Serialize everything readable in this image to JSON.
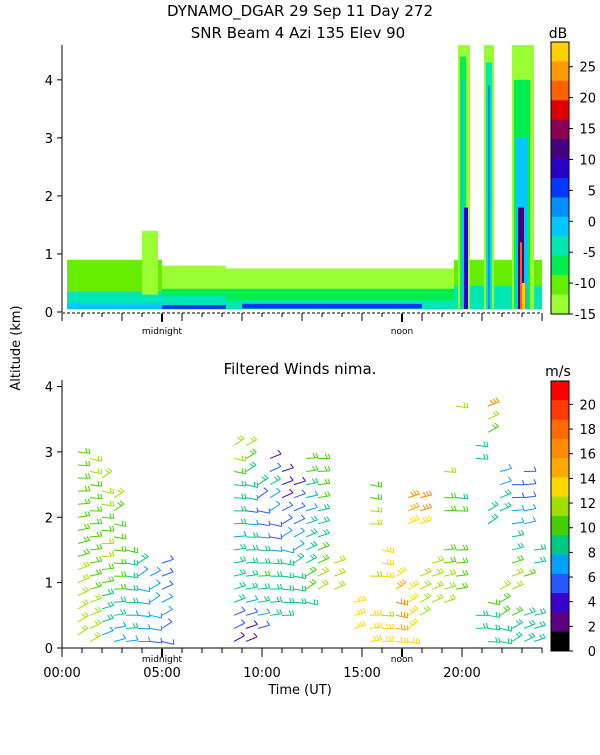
{
  "chart_data": [
    {
      "type": "heatmap",
      "title": "DYNAMO_DGAR  29 Sep 11 Day 272",
      "subtitle": "SNR Beam 4 Azi 135 Elev 90",
      "shared_ylabel": "Altitude (km)",
      "ylim": [
        0,
        4.6
      ],
      "yticks": [
        0,
        1,
        2,
        3,
        4
      ],
      "xlim_hours": [
        0,
        24
      ],
      "x_annotations": [
        {
          "label": "midnight",
          "hour": 5
        },
        {
          "label": "noon",
          "hour": 17
        }
      ],
      "colorbar": {
        "unit": "dB",
        "ticks": [
          "25",
          "20",
          "15",
          "10",
          "5",
          "0",
          "-5",
          "-10",
          "-15"
        ],
        "colors": [
          "#ffd000",
          "#ff9900",
          "#ff6200",
          "#e00000",
          "#8a0050",
          "#460080",
          "#2a00c8",
          "#0038ff",
          "#0090ff",
          "#00c8ff",
          "#00e6b4",
          "#00ee50",
          "#66ee00",
          "#99ff33"
        ],
        "range": [
          -15,
          29
        ]
      },
      "regions": [
        {
          "x0": 0.25,
          "x1": 5.0,
          "y0": 0.05,
          "y1": 0.9,
          "level": 1
        },
        {
          "x0": 0.25,
          "x1": 5.0,
          "y0": 0.05,
          "y1": 0.35,
          "level": 3
        },
        {
          "x0": 0.25,
          "x1": 5.0,
          "y0": 0.05,
          "y1": 0.15,
          "level": 4
        },
        {
          "x0": 4.0,
          "x1": 4.8,
          "y0": 0.3,
          "y1": 1.4,
          "level": 0
        },
        {
          "x0": 5.0,
          "x1": 8.2,
          "y0": 0.05,
          "y1": 0.8,
          "level": 0
        },
        {
          "x0": 5.0,
          "x1": 8.2,
          "y0": 0.05,
          "y1": 0.4,
          "level": 2
        },
        {
          "x0": 5.0,
          "x1": 8.2,
          "y0": 0.05,
          "y1": 0.28,
          "level": 3
        },
        {
          "x0": 5.0,
          "x1": 8.2,
          "y0": 0.05,
          "y1": 0.12,
          "level": 6
        },
        {
          "x0": 8.2,
          "x1": 19.6,
          "y0": 0.05,
          "y1": 0.75,
          "level": 0
        },
        {
          "x0": 8.2,
          "x1": 19.6,
          "y0": 0.05,
          "y1": 0.4,
          "level": 2
        },
        {
          "x0": 8.2,
          "x1": 19.6,
          "y0": 0.05,
          "y1": 0.2,
          "level": 3
        },
        {
          "x0": 9.0,
          "x1": 18.0,
          "y0": 0.06,
          "y1": 0.14,
          "level": 6
        },
        {
          "x0": 19.6,
          "x1": 24.0,
          "y0": 0.05,
          "y1": 0.9,
          "level": 1
        },
        {
          "x0": 19.6,
          "x1": 24.0,
          "y0": 0.05,
          "y1": 0.45,
          "level": 3
        },
        {
          "x0": 19.8,
          "x1": 20.4,
          "y0": 0.05,
          "y1": 4.6,
          "level": 0
        },
        {
          "x0": 19.9,
          "x1": 20.2,
          "y0": 0.05,
          "y1": 4.4,
          "level": 2
        },
        {
          "x0": 20.0,
          "x1": 20.1,
          "y0": 0.05,
          "y1": 4.0,
          "level": 4
        },
        {
          "x0": 20.1,
          "x1": 20.3,
          "y0": 0.05,
          "y1": 1.8,
          "level": 7
        },
        {
          "x0": 21.1,
          "x1": 21.6,
          "y0": 0.05,
          "y1": 4.6,
          "level": 0
        },
        {
          "x0": 21.2,
          "x1": 21.5,
          "y0": 0.05,
          "y1": 4.3,
          "level": 3
        },
        {
          "x0": 21.3,
          "x1": 21.4,
          "y0": 0.05,
          "y1": 3.9,
          "level": 5
        },
        {
          "x0": 22.5,
          "x1": 23.6,
          "y0": 0.05,
          "y1": 4.6,
          "level": 0
        },
        {
          "x0": 22.6,
          "x1": 23.4,
          "y0": 0.05,
          "y1": 4.0,
          "level": 2
        },
        {
          "x0": 22.7,
          "x1": 23.3,
          "y0": 0.05,
          "y1": 3.0,
          "level": 4
        },
        {
          "x0": 22.8,
          "x1": 23.1,
          "y0": 0.05,
          "y1": 1.8,
          "level": 8
        },
        {
          "x0": 22.9,
          "x1": 23.0,
          "y0": 0.05,
          "y1": 1.2,
          "level": 11
        },
        {
          "x0": 23.0,
          "x1": 23.15,
          "y0": 0.05,
          "y1": 0.5,
          "level": 13
        }
      ]
    },
    {
      "type": "scatter",
      "title": "Filtered Winds nima.",
      "xlabel": "Time (UT)",
      "xticks": [
        "00:00",
        "05:00",
        "10:00",
        "15:00",
        "20:00"
      ],
      "xtick_hours": [
        0,
        5,
        10,
        15,
        20
      ],
      "ylim": [
        0,
        4.1
      ],
      "yticks": [
        0,
        1,
        2,
        3,
        4
      ],
      "x_annotations": [
        {
          "label": "midnight",
          "hour": 5
        },
        {
          "label": "noon",
          "hour": 17
        }
      ],
      "colorbar": {
        "unit": "m/s",
        "ticks": [
          "20",
          "18",
          "16",
          "14",
          "12",
          "10",
          "8",
          "6",
          "4",
          "2",
          "0"
        ],
        "colors": [
          "#ff0000",
          "#ff3a00",
          "#ff6a00",
          "#ff8a00",
          "#ffa800",
          "#ffd800",
          "#a0e000",
          "#44d000",
          "#00c880",
          "#00a0ff",
          "#2858ff",
          "#3a00d0",
          "#5a0080",
          "#000000"
        ],
        "range": [
          0,
          21.9
        ]
      },
      "barb_columns": [
        {
          "x": 0.8,
          "ys": [
            0.2,
            0.4,
            0.6,
            0.8,
            1.0,
            1.2,
            1.4,
            1.6,
            1.8,
            2.0,
            2.2,
            2.4,
            2.6,
            2.8,
            3.0
          ],
          "speeds": [
            12,
            12,
            12,
            11,
            11,
            11,
            10,
            10,
            10,
            10,
            10,
            10,
            10,
            10,
            10
          ]
        },
        {
          "x": 1.4,
          "ys": [
            0.1,
            0.3,
            0.5,
            0.7,
            0.9,
            1.1,
            1.3,
            1.5,
            1.7,
            1.9,
            2.1,
            2.3,
            2.5,
            2.7,
            2.9
          ],
          "speeds": [
            11,
            11,
            12,
            11,
            10,
            10,
            10,
            10,
            10,
            10,
            10,
            10,
            10,
            12,
            12
          ]
        },
        {
          "x": 2.0,
          "ys": [
            0.2,
            0.4,
            0.6,
            0.8,
            1.0,
            1.2,
            1.4,
            1.6,
            1.8,
            2.0,
            2.2,
            2.4,
            2.6
          ],
          "speeds": [
            7,
            8,
            9,
            9,
            10,
            10,
            12,
            12,
            10,
            10,
            12,
            12,
            12
          ]
        },
        {
          "x": 2.6,
          "ys": [
            0.1,
            0.3,
            0.5,
            0.7,
            0.9,
            1.1,
            1.3,
            1.5,
            1.7,
            1.9,
            2.1,
            2.3
          ],
          "speeds": [
            7,
            7,
            8,
            9,
            10,
            10,
            10,
            10,
            10,
            10,
            10,
            12
          ]
        },
        {
          "x": 3.2,
          "ys": [
            0.1,
            0.3,
            0.5,
            0.7,
            0.9,
            1.1,
            1.3,
            1.5
          ],
          "speeds": [
            7,
            8,
            7,
            8,
            8,
            8,
            9,
            10
          ]
        },
        {
          "x": 3.8,
          "ys": [
            0.1,
            0.3,
            0.5,
            0.7,
            0.9,
            1.1,
            1.3
          ],
          "speeds": [
            7,
            7,
            7,
            7,
            7,
            7,
            8
          ]
        },
        {
          "x": 4.4,
          "ys": [
            0.1,
            0.3,
            0.5,
            0.7,
            0.9,
            1.1
          ],
          "speeds": [
            6,
            7,
            7,
            7,
            7,
            7
          ]
        },
        {
          "x": 5.0,
          "ys": [
            0.1,
            0.3,
            0.5,
            0.7,
            0.9,
            1.1,
            1.3
          ],
          "speeds": [
            6,
            6,
            7,
            7,
            6,
            6,
            6
          ]
        },
        {
          "x": 8.6,
          "ys": [
            0.1,
            0.3,
            0.5,
            0.7,
            0.9,
            1.1,
            1.3,
            1.5,
            1.7,
            1.9,
            2.1,
            2.3,
            2.5,
            2.7,
            2.9,
            3.1
          ],
          "speeds": [
            4,
            5,
            6,
            8,
            9,
            9,
            9,
            8,
            7,
            8,
            8,
            8,
            9,
            10,
            12,
            12
          ]
        },
        {
          "x": 9.2,
          "ys": [
            0.1,
            0.3,
            0.5,
            0.7,
            0.9,
            1.1,
            1.3,
            1.5,
            1.7,
            1.9,
            2.1,
            2.3,
            2.5,
            2.7,
            2.9,
            3.1
          ],
          "speeds": [
            3,
            4,
            6,
            7,
            8,
            8,
            9,
            9,
            8,
            7,
            6,
            7,
            8,
            9,
            10,
            12
          ]
        },
        {
          "x": 9.8,
          "ys": [
            0.3,
            0.5,
            0.7,
            0.9,
            1.1,
            1.3,
            1.5,
            1.7,
            1.9,
            2.1,
            2.3,
            2.5
          ],
          "speeds": [
            6,
            7,
            8,
            9,
            10,
            9,
            8,
            7,
            6,
            5,
            6,
            8
          ]
        },
        {
          "x": 10.4,
          "ys": [
            0.5,
            0.7,
            0.9,
            1.1,
            1.3,
            1.5,
            1.7,
            1.9,
            2.1,
            2.3,
            2.5,
            2.7,
            2.9
          ],
          "speeds": [
            8,
            8,
            9,
            9,
            8,
            7,
            6,
            6,
            7,
            7,
            8,
            5,
            3
          ]
        },
        {
          "x": 11.0,
          "ys": [
            0.5,
            0.7,
            0.9,
            1.1,
            1.3,
            1.5,
            1.7,
            1.9,
            2.1,
            2.3,
            2.5,
            2.7
          ],
          "speeds": [
            8,
            9,
            9,
            9,
            8,
            7,
            7,
            6,
            6,
            4,
            4,
            3
          ]
        },
        {
          "x": 11.6,
          "ys": [
            0.7,
            0.9,
            1.1,
            1.3,
            1.5,
            1.7,
            1.9,
            2.1,
            2.3,
            2.5
          ],
          "speeds": [
            9,
            9,
            8,
            8,
            7,
            7,
            6,
            6,
            5,
            4
          ]
        },
        {
          "x": 12.2,
          "ys": [
            0.7,
            0.9,
            1.1,
            1.3,
            1.5,
            1.7,
            1.9,
            2.1,
            2.3,
            2.5,
            2.7,
            2.9
          ],
          "speeds": [
            9,
            10,
            10,
            9,
            9,
            8,
            8,
            7,
            7,
            8,
            10,
            10
          ]
        },
        {
          "x": 12.8,
          "ys": [
            0.9,
            1.1,
            1.3,
            1.5,
            1.7,
            1.9,
            2.1,
            2.3,
            2.5,
            2.7,
            2.9
          ],
          "speeds": [
            12,
            11,
            10,
            10,
            9,
            9,
            9,
            10,
            10,
            10,
            10
          ]
        },
        {
          "x": 13.6,
          "ys": [
            0.9,
            1.1,
            1.3
          ],
          "speeds": [
            12,
            12,
            11
          ]
        },
        {
          "x": 14.6,
          "ys": [
            0.3,
            0.5,
            0.7
          ],
          "speeds": [
            14,
            14,
            13
          ]
        },
        {
          "x": 15.4,
          "ys": [
            0.1,
            0.3,
            0.5,
            1.1,
            1.9,
            2.1,
            2.3,
            2.5
          ],
          "speeds": [
            14,
            14,
            14,
            12,
            12,
            12,
            10,
            10
          ]
        },
        {
          "x": 16.0,
          "ys": [
            0.1,
            0.3,
            0.5,
            1.1,
            1.3,
            1.5
          ],
          "speeds": [
            13,
            13,
            12,
            13,
            14,
            14
          ]
        },
        {
          "x": 16.7,
          "ys": [
            0.1,
            0.3,
            0.5,
            0.7,
            0.9,
            1.1
          ],
          "speeds": [
            14,
            15,
            16,
            16,
            15,
            14
          ]
        },
        {
          "x": 17.3,
          "ys": [
            0.1,
            0.3,
            0.5,
            0.7,
            0.9,
            1.9,
            2.1,
            2.3
          ],
          "speeds": [
            14,
            14,
            13,
            13,
            13,
            14,
            15,
            16
          ]
        },
        {
          "x": 17.9,
          "ys": [
            0.5,
            0.7,
            0.9,
            1.1,
            1.9,
            2.1,
            2.3
          ],
          "speeds": [
            12,
            12,
            12,
            12,
            14,
            16,
            16
          ]
        },
        {
          "x": 18.5,
          "ys": [
            0.7,
            0.9,
            1.1,
            1.3
          ],
          "speeds": [
            12,
            12,
            11,
            11
          ]
        },
        {
          "x": 19.1,
          "ys": [
            0.7,
            0.9,
            1.1,
            1.3,
            1.5,
            2.1,
            2.3,
            2.7
          ],
          "speeds": [
            11,
            11,
            11,
            10,
            10,
            10,
            10,
            11
          ]
        },
        {
          "x": 19.7,
          "ys": [
            0.9,
            1.1,
            1.3,
            1.5,
            2.1,
            2.3,
            3.7
          ],
          "speeds": [
            10,
            10,
            10,
            10,
            10,
            9,
            11
          ]
        },
        {
          "x": 20.7,
          "ys": [
            0.3,
            0.5,
            2.9,
            3.1
          ],
          "speeds": [
            8,
            8,
            9,
            9
          ]
        },
        {
          "x": 21.3,
          "ys": [
            0.1,
            0.3,
            0.5,
            0.7,
            1.9,
            2.1,
            3.3,
            3.5,
            3.7
          ],
          "speeds": [
            8,
            8,
            9,
            10,
            9,
            9,
            10,
            11,
            16
          ]
        },
        {
          "x": 21.9,
          "ys": [
            0.1,
            0.3,
            0.5,
            0.7,
            0.9,
            2.1,
            2.3,
            2.5,
            2.7
          ],
          "speeds": [
            9,
            9,
            10,
            10,
            11,
            8,
            8,
            7,
            7
          ]
        },
        {
          "x": 22.5,
          "ys": [
            0.1,
            0.3,
            0.5,
            0.9,
            1.1,
            1.3,
            1.5,
            1.7,
            1.9,
            2.1,
            2.3,
            2.5
          ],
          "speeds": [
            9,
            9,
            10,
            11,
            11,
            10,
            9,
            8,
            7,
            7,
            6,
            6
          ]
        },
        {
          "x": 23.1,
          "ys": [
            0.1,
            0.3,
            0.5,
            1.1,
            1.9,
            2.1,
            2.3,
            2.5,
            2.7
          ],
          "speeds": [
            8,
            9,
            9,
            10,
            7,
            7,
            6,
            6,
            6
          ]
        },
        {
          "x": 23.6,
          "ys": [
            0.1,
            0.3,
            0.5,
            1.3,
            1.5
          ],
          "speeds": [
            8,
            8,
            8,
            9,
            9
          ]
        }
      ]
    }
  ]
}
